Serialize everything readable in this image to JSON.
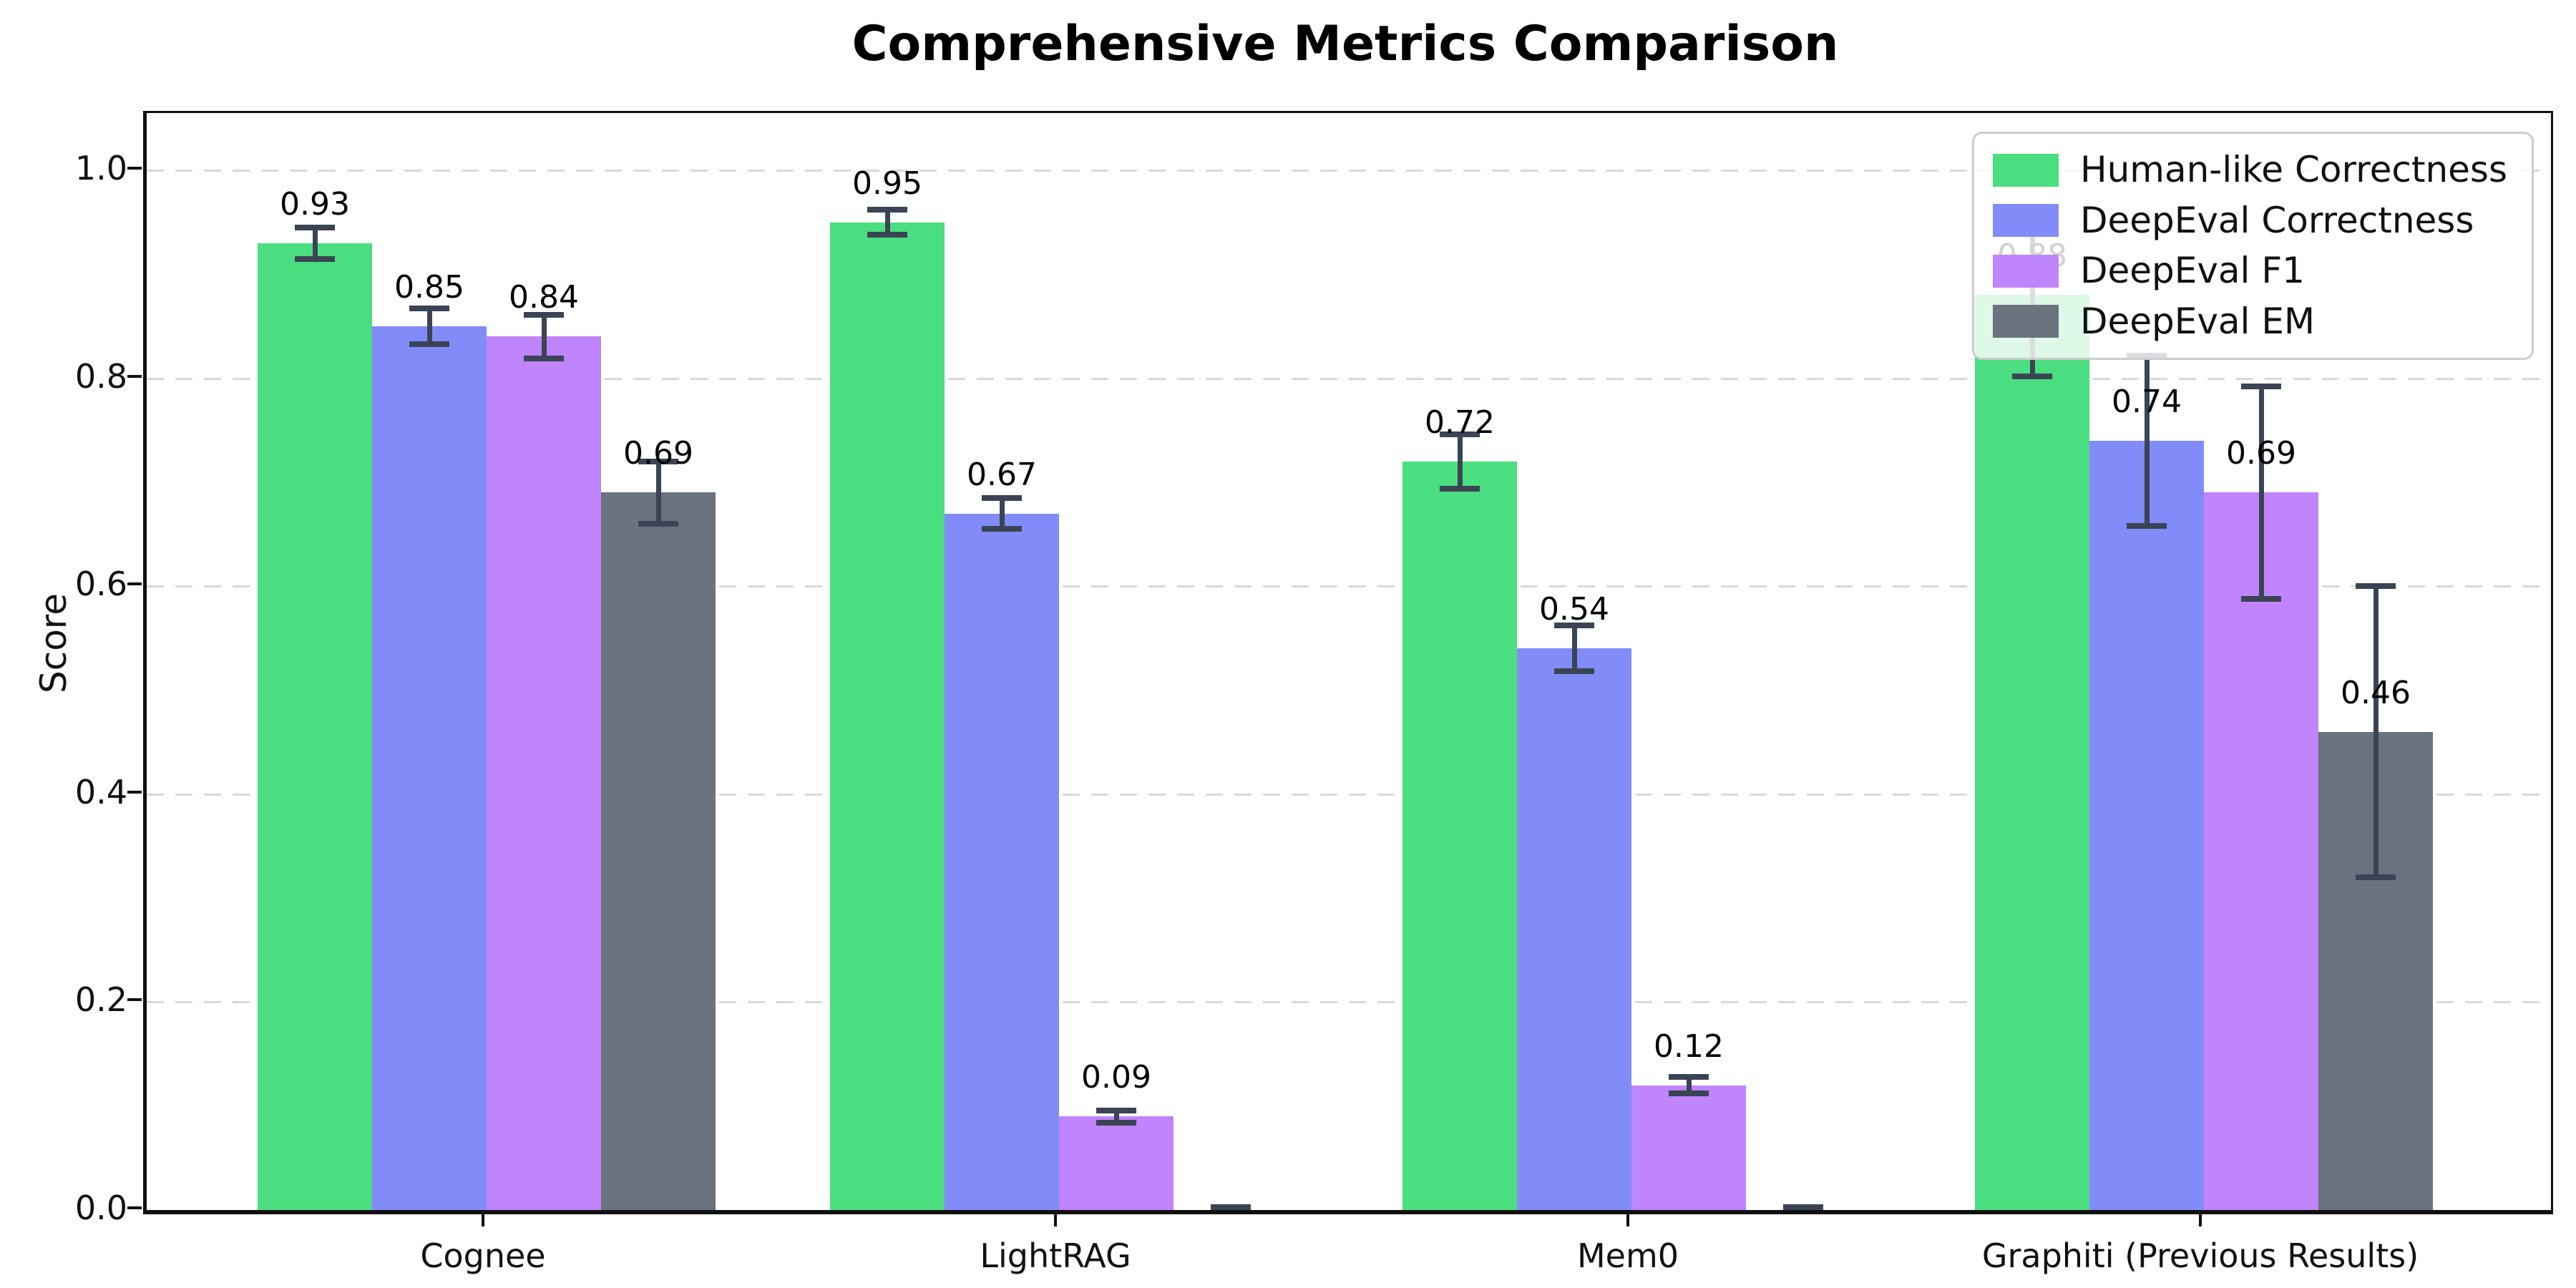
{
  "chart_data": {
    "type": "bar",
    "title": "Comprehensive Metrics Comparison",
    "xlabel": "",
    "ylabel": "Score",
    "ylim": [
      0,
      1.055
    ],
    "yticks": [
      0.0,
      0.2,
      0.4,
      0.6,
      0.8,
      1.0
    ],
    "ytick_labels": [
      "0.0",
      "0.2",
      "0.4",
      "0.6",
      "0.8",
      "1.0"
    ],
    "grid": "horizontal-dashed",
    "legend_position": "upper-right",
    "categories": [
      "Cognee",
      "LightRAG",
      "Mem0",
      "Graphiti (Previous Results)"
    ],
    "series": [
      {
        "name": "Human-like Correctness",
        "color": "#4ade80",
        "values": [
          0.93,
          0.95,
          0.72,
          0.88
        ],
        "errors": [
          0.015,
          0.012,
          0.026,
          0.078
        ],
        "labels": [
          "0.93",
          "0.95",
          "0.72",
          "0.88"
        ]
      },
      {
        "name": "DeepEval Correctness",
        "color": "#818cf8",
        "values": [
          0.85,
          0.67,
          0.54,
          0.74
        ],
        "errors": [
          0.017,
          0.015,
          0.022,
          0.082
        ],
        "labels": [
          "0.85",
          "0.67",
          "0.54",
          "0.74"
        ]
      },
      {
        "name": "DeepEval F1",
        "color": "#c084fc",
        "values": [
          0.84,
          0.09,
          0.12,
          0.69
        ],
        "errors": [
          0.021,
          0.006,
          0.008,
          0.102
        ],
        "labels": [
          "0.84",
          "0.09",
          "0.12",
          "0.69"
        ]
      },
      {
        "name": "DeepEval EM",
        "color": "#6b7280",
        "values": [
          0.69,
          0.0,
          0.0,
          0.46
        ],
        "errors": [
          0.03,
          0.003,
          0.003,
          0.14
        ],
        "labels": [
          "0.69",
          "",
          "",
          "0.46"
        ]
      }
    ],
    "style": {
      "errorbar_color": "#3a4454",
      "grid_color": "#d9d9d9",
      "spine_color": "#111111",
      "background": "#ffffff"
    }
  }
}
